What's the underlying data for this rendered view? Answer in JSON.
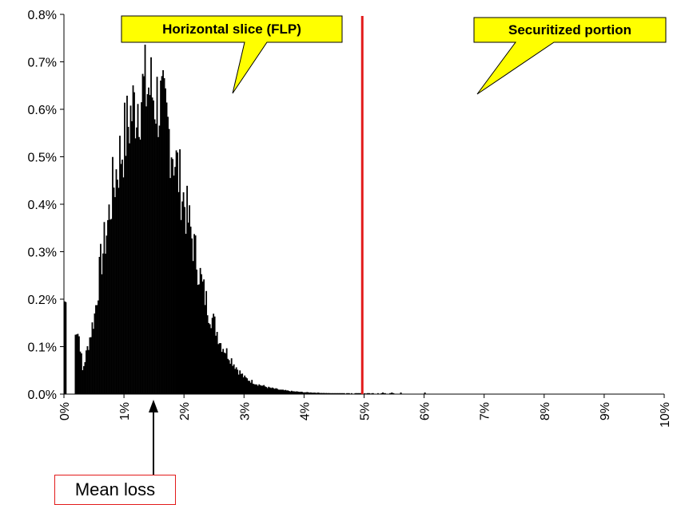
{
  "chart_data": {
    "type": "bar",
    "title": "",
    "xlabel": "",
    "ylabel": "",
    "xlim": [
      0,
      10
    ],
    "ylim": [
      0,
      0.8
    ],
    "x_ticks": [
      "0%",
      "1%",
      "2%",
      "3%",
      "4%",
      "5%",
      "6%",
      "7%",
      "8%",
      "9%",
      "10%"
    ],
    "y_ticks": [
      "0.0%",
      "0.1%",
      "0.2%",
      "0.3%",
      "0.4%",
      "0.5%",
      "0.6%",
      "0.7%",
      "0.8%"
    ],
    "bar_color": "#000000",
    "distribution": {
      "x": [
        0.0,
        0.2,
        0.25,
        0.3,
        0.4,
        0.5,
        0.6,
        0.7,
        0.8,
        0.9,
        1.0,
        1.1,
        1.2,
        1.3,
        1.4,
        1.5,
        1.6,
        1.7,
        1.8,
        1.9,
        2.0,
        2.1,
        2.2,
        2.3,
        2.4,
        2.5,
        2.6,
        2.7,
        2.8,
        2.9,
        3.0,
        3.2,
        3.4,
        3.6,
        3.8,
        4.0,
        4.2,
        4.4,
        4.6,
        4.8,
        5.0,
        5.3,
        5.6,
        6.0
      ],
      "y": [
        0.2,
        0.14,
        0.12,
        0.05,
        0.11,
        0.17,
        0.28,
        0.35,
        0.44,
        0.5,
        0.55,
        0.6,
        0.63,
        0.65,
        0.66,
        0.64,
        0.62,
        0.58,
        0.53,
        0.47,
        0.41,
        0.35,
        0.29,
        0.23,
        0.18,
        0.15,
        0.11,
        0.09,
        0.07,
        0.05,
        0.035,
        0.022,
        0.014,
        0.009,
        0.006,
        0.004,
        0.003,
        0.002,
        0.0015,
        0.001,
        0.001,
        0.0006,
        0.0004,
        0.0002
      ]
    },
    "threshold": {
      "x": 4.97,
      "color": "#e21a1a"
    },
    "annotations": [
      {
        "id": "flp",
        "text": "Horizontal slice (FLP)",
        "points_to": [
          2.85,
          0.63
        ],
        "fill": "#ffff00"
      },
      {
        "id": "securitized",
        "text": "Securitized portion",
        "points_to": [
          6.9,
          0.63
        ],
        "fill": "#ffff00"
      }
    ],
    "mean_loss": {
      "label": "Mean loss",
      "x": 1.5,
      "box_color": "#e21a1a"
    }
  }
}
